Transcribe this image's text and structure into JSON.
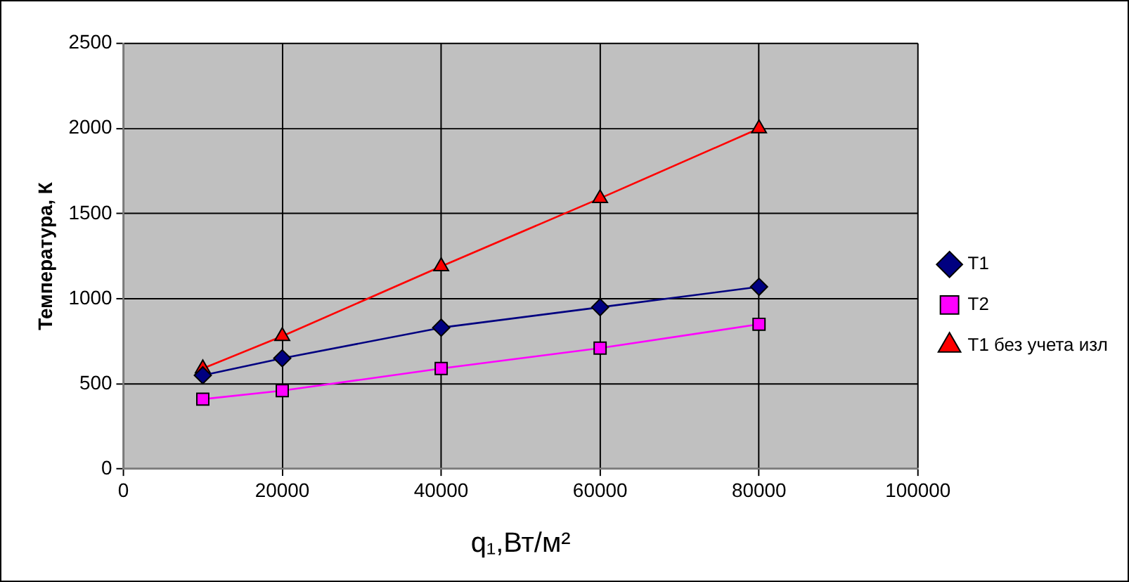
{
  "chart_data": {
    "type": "line",
    "xlabel": "q₁,Вт/м²",
    "ylabel": "Температура, К",
    "x": [
      10000,
      20000,
      40000,
      60000,
      80000
    ],
    "series": [
      {
        "name": "T1",
        "color": "#000080",
        "marker": "diamond",
        "values": [
          550,
          650,
          830,
          950,
          1070
        ]
      },
      {
        "name": "T2",
        "color": "#ff00ff",
        "marker": "square",
        "values": [
          410,
          460,
          590,
          710,
          850
        ]
      },
      {
        "name": "T1 без учета изл",
        "color": "#ff0000",
        "marker": "triangle",
        "values": [
          590,
          780,
          1190,
          1590,
          2000
        ]
      }
    ],
    "xlim": [
      0,
      100000
    ],
    "xticks": [
      0,
      20000,
      40000,
      60000,
      80000,
      100000
    ],
    "ylim": [
      0,
      2500
    ],
    "yticks": [
      0,
      500,
      1000,
      1500,
      2000,
      2500
    ],
    "grid": true,
    "legend": "right",
    "line_style": "solid"
  }
}
